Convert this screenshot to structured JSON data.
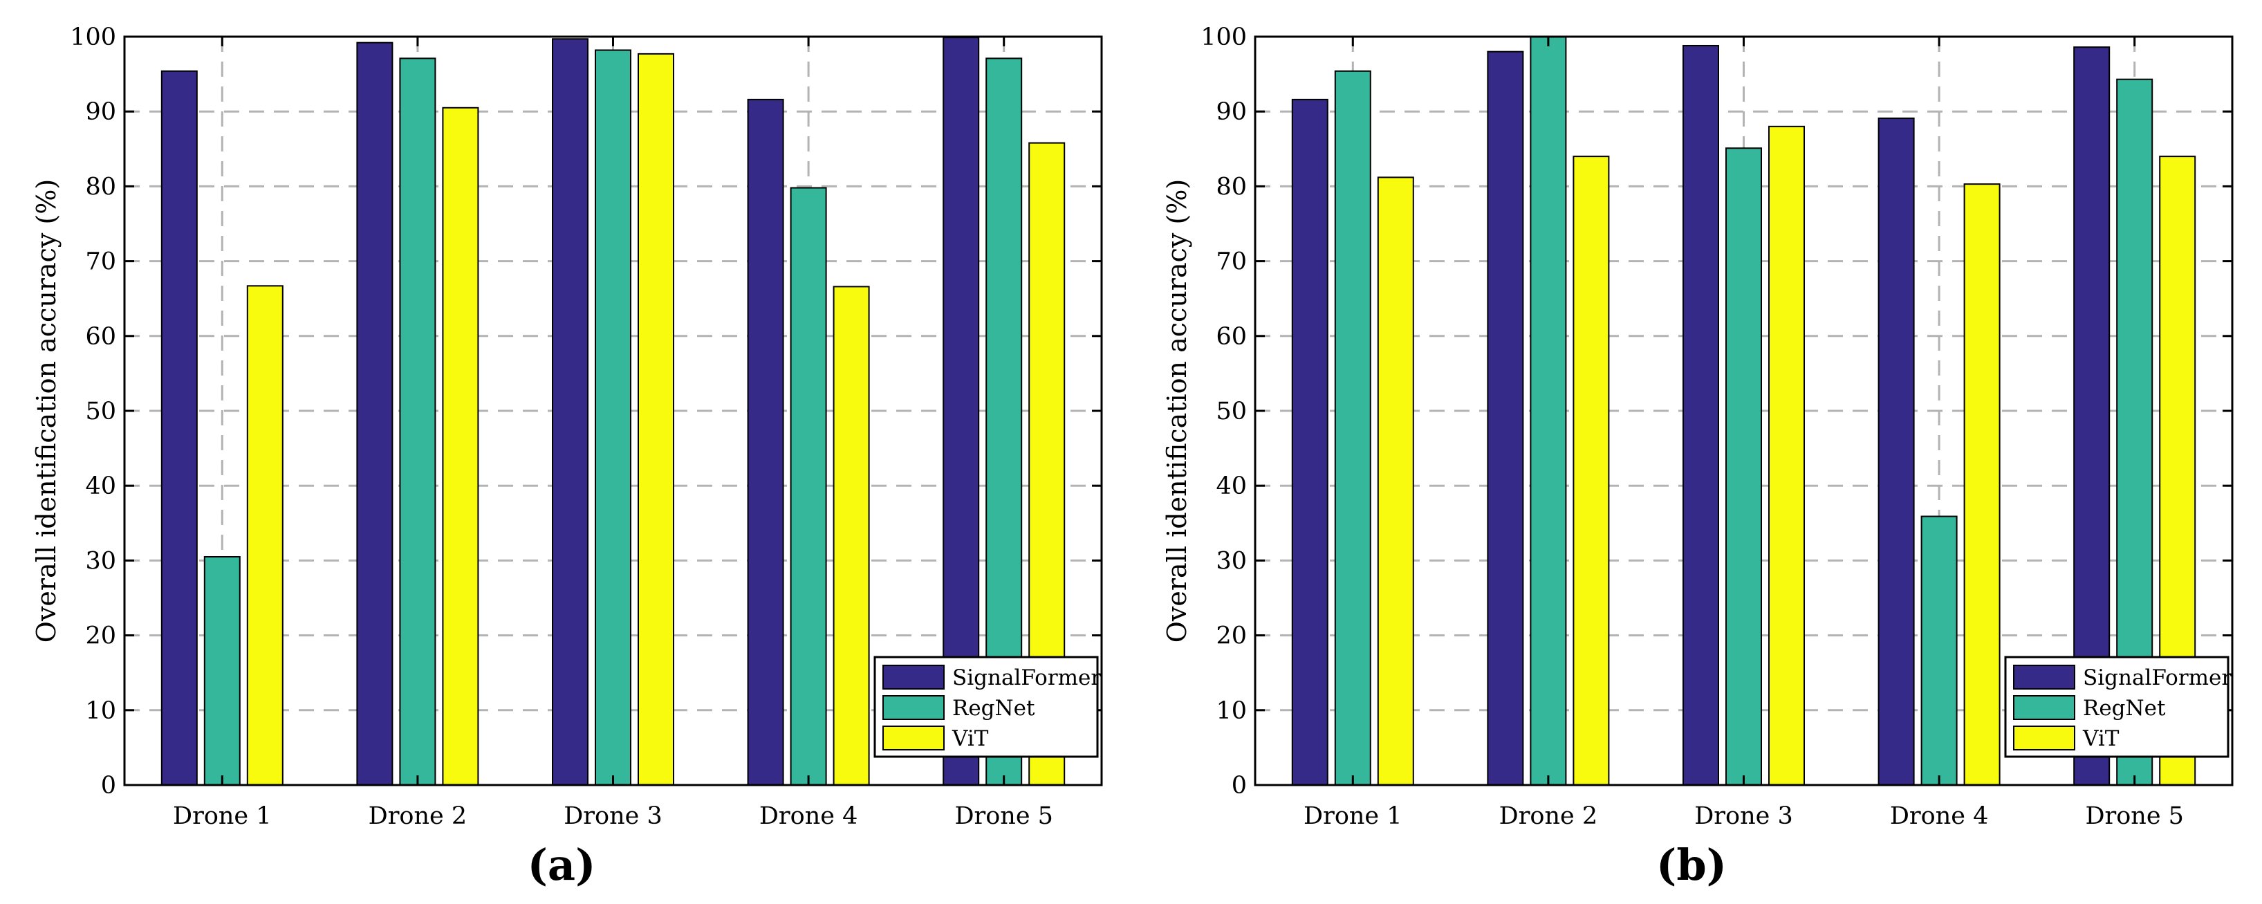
{
  "chart_data": [
    {
      "type": "bar",
      "panel_label": "(a)",
      "categories": [
        "Drone 1",
        "Drone 2",
        "Drone 3",
        "Drone 4",
        "Drone 5"
      ],
      "series": [
        {
          "name": "SignalFormer",
          "color": "#352A87",
          "values": [
            95.4,
            99.2,
            99.7,
            91.6,
            99.9
          ]
        },
        {
          "name": "RegNet",
          "color": "#35B79B",
          "values": [
            30.5,
            97.1,
            98.2,
            79.8,
            97.1
          ]
        },
        {
          "name": "ViT",
          "color": "#F9FB0E",
          "values": [
            66.7,
            90.5,
            97.7,
            66.6,
            85.8
          ]
        }
      ],
      "ylabel": "Overall identification accuracy (%)",
      "xlabel": "",
      "ylim": [
        0,
        100
      ],
      "yticks": [
        0,
        10,
        20,
        30,
        40,
        50,
        60,
        70,
        80,
        90,
        100
      ],
      "grid": true,
      "legend_position": "bottom-right"
    },
    {
      "type": "bar",
      "panel_label": "(b)",
      "categories": [
        "Drone 1",
        "Drone 2",
        "Drone 3",
        "Drone 4",
        "Drone 5"
      ],
      "series": [
        {
          "name": "SignalFormer",
          "color": "#352A87",
          "values": [
            91.6,
            98.0,
            98.8,
            89.1,
            98.6
          ]
        },
        {
          "name": "RegNet",
          "color": "#35B79B",
          "values": [
            95.4,
            100.0,
            85.1,
            35.9,
            94.3
          ]
        },
        {
          "name": "ViT",
          "color": "#F9FB0E",
          "values": [
            81.2,
            84.0,
            88.0,
            80.3,
            84.0
          ]
        }
      ],
      "ylabel": "Overall identification accuracy (%)",
      "xlabel": "",
      "ylim": [
        0,
        100
      ],
      "yticks": [
        0,
        10,
        20,
        30,
        40,
        50,
        60,
        70,
        80,
        90,
        100
      ],
      "grid": true,
      "legend_position": "bottom-right"
    }
  ]
}
